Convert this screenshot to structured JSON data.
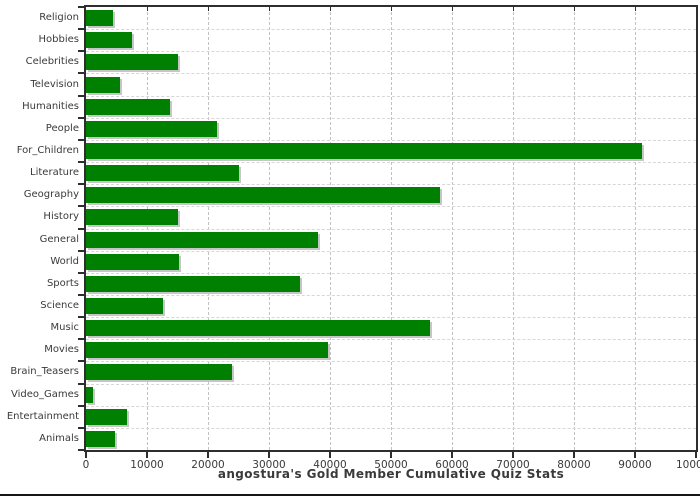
{
  "chart_data": {
    "type": "bar",
    "orientation": "horizontal",
    "title": "angostura's Gold Member Cumulative Quiz Stats",
    "categories": [
      "Religion",
      "Hobbies",
      "Celebrities",
      "Television",
      "Humanities",
      "People",
      "For_Children",
      "Literature",
      "Geography",
      "History",
      "General",
      "World",
      "Sports",
      "Science",
      "Music",
      "Movies",
      "Brain_Teasers",
      "Video_Games",
      "Entertainment",
      "Animals"
    ],
    "values": [
      4400,
      7600,
      15000,
      5600,
      13800,
      21400,
      91200,
      25000,
      58000,
      15100,
      38000,
      15200,
      35000,
      12600,
      56400,
      39600,
      24000,
      1100,
      6800,
      4700
    ],
    "xlabel": "",
    "ylabel": "",
    "xlim": [
      0,
      100000
    ],
    "x_ticks": [
      0,
      10000,
      20000,
      30000,
      40000,
      50000,
      60000,
      70000,
      80000,
      90000,
      100000
    ],
    "x_tick_labels": [
      "0",
      "10000",
      "20000",
      "30000",
      "40000",
      "50000",
      "60000",
      "70000",
      "80000",
      "90000",
      "100000"
    ],
    "grid": "dashed",
    "legend": "none",
    "bar_color": "#008000",
    "bar_shadow_color": "#c6c6c6",
    "background": "#ffffff"
  }
}
